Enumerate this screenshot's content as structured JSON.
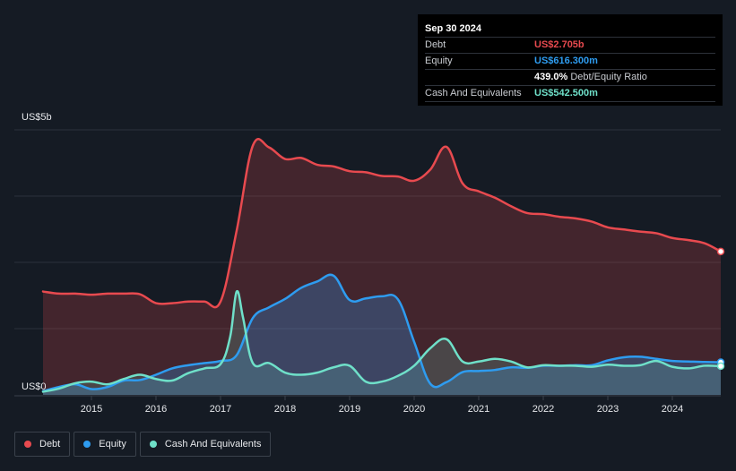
{
  "tooltip": {
    "date": "Sep 30 2024",
    "rows": [
      {
        "label": "Debt",
        "value": "US$2.705b",
        "color": "#e84a4f"
      },
      {
        "label": "Equity",
        "value": "US$616.300m",
        "color": "#2e9cf0"
      },
      {
        "label": "",
        "value": "439.0%",
        "suffix": "Debt/Equity Ratio",
        "color": "#ffffff"
      },
      {
        "label": "Cash And Equivalents",
        "value": "US$542.500m",
        "color": "#6fe0c9"
      }
    ]
  },
  "legend": [
    {
      "label": "Debt",
      "color": "#e84a4f"
    },
    {
      "label": "Equity",
      "color": "#2e9cf0"
    },
    {
      "label": "Cash And Equivalents",
      "color": "#6fe0c9"
    }
  ],
  "chart_data": {
    "type": "area",
    "title": "",
    "xlabel": "",
    "ylabel": "",
    "y_unit": "US$",
    "ylim": [
      0,
      5
    ],
    "ytick_labels": [
      "US$0",
      "US$5b"
    ],
    "xlim": [
      2014.25,
      2024.75
    ],
    "xtick_values": [
      2015,
      2016,
      2017,
      2018,
      2019,
      2020,
      2021,
      2022,
      2023,
      2024
    ],
    "xtick_labels": [
      "2015",
      "2016",
      "2017",
      "2018",
      "2019",
      "2020",
      "2021",
      "2022",
      "2023",
      "2024"
    ],
    "gridlines": [
      1.25,
      2.5,
      3.75
    ],
    "series": [
      {
        "name": "Debt",
        "color": "#e84a4f",
        "x": [
          2014.25,
          2014.5,
          2014.75,
          2015.0,
          2015.25,
          2015.5,
          2015.75,
          2016.0,
          2016.25,
          2016.5,
          2016.75,
          2017.0,
          2017.25,
          2017.5,
          2017.75,
          2018.0,
          2018.25,
          2018.5,
          2018.75,
          2019.0,
          2019.25,
          2019.5,
          2019.75,
          2020.0,
          2020.25,
          2020.5,
          2020.75,
          2021.0,
          2021.25,
          2021.5,
          2021.75,
          2022.0,
          2022.25,
          2022.5,
          2022.75,
          2023.0,
          2023.25,
          2023.5,
          2023.75,
          2024.0,
          2024.25,
          2024.5,
          2024.75
        ],
        "values": [
          1.95,
          1.91,
          1.91,
          1.89,
          1.91,
          1.91,
          1.9,
          1.73,
          1.73,
          1.76,
          1.76,
          1.76,
          3.1,
          4.7,
          4.67,
          4.45,
          4.47,
          4.34,
          4.31,
          4.22,
          4.2,
          4.13,
          4.12,
          4.04,
          4.25,
          4.68,
          3.99,
          3.84,
          3.72,
          3.56,
          3.43,
          3.41,
          3.36,
          3.33,
          3.27,
          3.16,
          3.12,
          3.08,
          3.05,
          2.96,
          2.92,
          2.86,
          2.705
        ]
      },
      {
        "name": "Equity",
        "color": "#2e9cf0",
        "x": [
          2014.25,
          2014.5,
          2014.75,
          2015.0,
          2015.25,
          2015.5,
          2015.75,
          2016.0,
          2016.25,
          2016.5,
          2016.75,
          2017.0,
          2017.25,
          2017.5,
          2017.75,
          2018.0,
          2018.25,
          2018.5,
          2018.75,
          2019.0,
          2019.25,
          2019.5,
          2019.75,
          2020.0,
          2020.25,
          2020.5,
          2020.75,
          2021.0,
          2021.25,
          2021.5,
          2021.75,
          2022.0,
          2022.25,
          2022.5,
          2022.75,
          2023.0,
          2023.25,
          2023.5,
          2023.75,
          2024.0,
          2024.25,
          2024.5,
          2024.75
        ],
        "values": [
          0.07,
          0.15,
          0.2,
          0.11,
          0.15,
          0.27,
          0.28,
          0.38,
          0.5,
          0.56,
          0.6,
          0.64,
          0.75,
          1.45,
          1.65,
          1.81,
          2.02,
          2.14,
          2.25,
          1.79,
          1.82,
          1.86,
          1.8,
          1.0,
          0.21,
          0.24,
          0.43,
          0.45,
          0.47,
          0.52,
          0.51,
          0.55,
          0.55,
          0.56,
          0.56,
          0.65,
          0.71,
          0.72,
          0.68,
          0.64,
          0.63,
          0.62,
          0.6163
        ]
      },
      {
        "name": "Cash And Equivalents",
        "color": "#6fe0c9",
        "x": [
          2014.25,
          2014.5,
          2014.75,
          2015.0,
          2015.25,
          2015.5,
          2015.75,
          2016.0,
          2016.25,
          2016.5,
          2016.75,
          2017.0,
          2017.15,
          2017.25,
          2017.35,
          2017.5,
          2017.75,
          2018.0,
          2018.25,
          2018.5,
          2018.75,
          2019.0,
          2019.25,
          2019.5,
          2019.75,
          2020.0,
          2020.25,
          2020.5,
          2020.75,
          2021.0,
          2021.25,
          2021.5,
          2021.75,
          2022.0,
          2022.25,
          2022.5,
          2022.75,
          2023.0,
          2023.25,
          2023.5,
          2023.75,
          2024.0,
          2024.25,
          2024.5,
          2024.75
        ],
        "values": [
          0.06,
          0.12,
          0.22,
          0.25,
          0.2,
          0.3,
          0.38,
          0.3,
          0.27,
          0.41,
          0.5,
          0.58,
          1.1,
          1.95,
          1.45,
          0.6,
          0.6,
          0.42,
          0.38,
          0.42,
          0.52,
          0.55,
          0.25,
          0.25,
          0.36,
          0.55,
          0.88,
          1.05,
          0.63,
          0.63,
          0.68,
          0.63,
          0.52,
          0.56,
          0.55,
          0.55,
          0.53,
          0.57,
          0.55,
          0.56,
          0.64,
          0.53,
          0.5,
          0.55,
          0.5425
        ]
      }
    ]
  }
}
